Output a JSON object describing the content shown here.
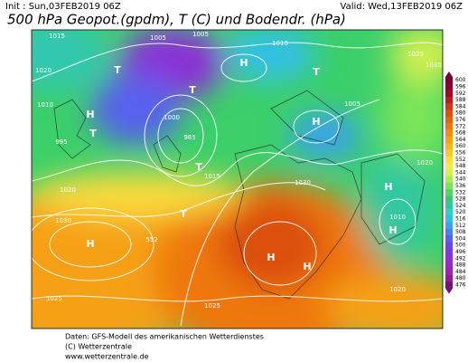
{
  "header": {
    "init": "Init : Sun,03FEB2019 06Z",
    "valid": "Valid: Wed,13FEB2019 06Z",
    "title": "500 hPa Geopot.(gpdm), T (C) und Bodendr. (hPa)"
  },
  "colorbar": {
    "ticks": [
      600,
      596,
      592,
      588,
      584,
      580,
      576,
      572,
      568,
      564,
      560,
      556,
      552,
      548,
      544,
      540,
      536,
      532,
      528,
      524,
      520,
      516,
      512,
      508,
      504,
      500,
      496,
      492,
      488,
      484,
      480,
      476
    ],
    "colors": [
      "#7a0030",
      "#8c0030",
      "#a00828",
      "#b81c1c",
      "#cc3a14",
      "#dc5010",
      "#e6640c",
      "#ee780c",
      "#f28c10",
      "#f6a014",
      "#f8b41c",
      "#fac828",
      "#fadc3c",
      "#f0ec50",
      "#d2f050",
      "#a8ee50",
      "#78e458",
      "#50d860",
      "#38c878",
      "#30c8a0",
      "#30d0c8",
      "#30c0e8",
      "#3aa0f0",
      "#4880f0",
      "#5860ee",
      "#6848e8",
      "#7a38e0",
      "#8a30d4",
      "#9628c4",
      "#a020b0",
      "#9a1896",
      "#7a1070"
    ]
  },
  "map_labels": [
    "H",
    "T",
    "T",
    "H",
    "T",
    "T",
    "T",
    "T",
    "H",
    "H",
    "H",
    "H",
    "H",
    "H",
    "1015",
    "1005",
    "1005",
    "1010",
    "1025",
    "1035",
    "1020",
    "1010",
    "995",
    "1000",
    "985",
    "1015",
    "1020",
    "1030",
    "1025",
    "1025",
    "1030",
    "1020",
    "1005",
    "552",
    "1010",
    "1020"
  ],
  "footer": [
    "Daten: GFS-Modell des amerikanischen Wetterdienstes",
    "(C) Wetterzentrale",
    "www.wetterzentrale.de"
  ]
}
